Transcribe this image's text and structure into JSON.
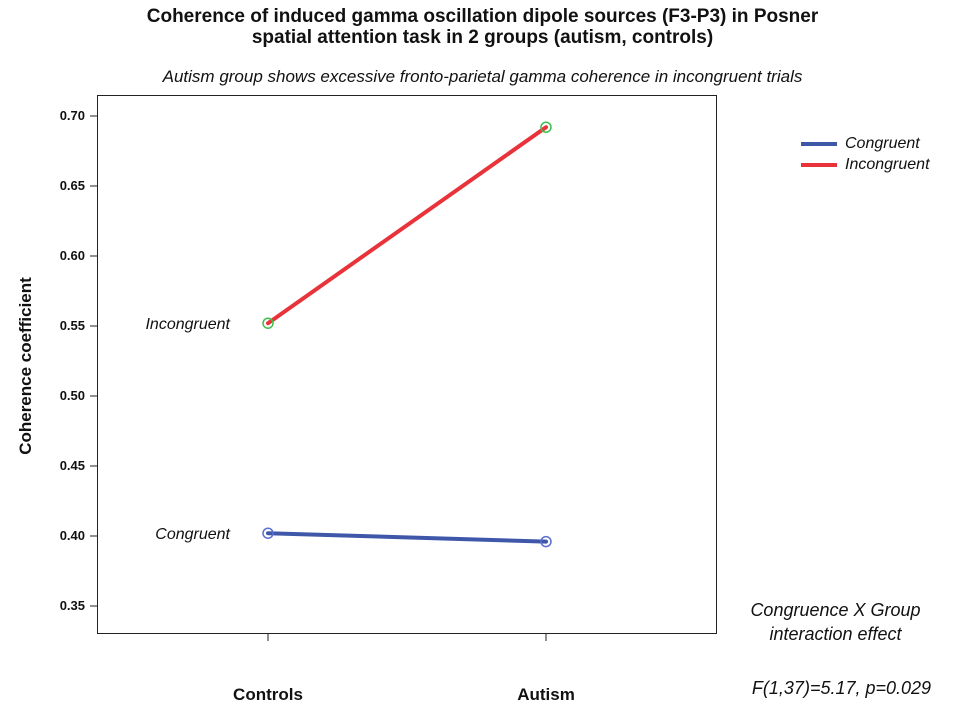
{
  "title_line1": "Coherence of induced gamma oscillation dipole sources (F3-P3) in Posner",
  "title_line2": "spatial attention task in 2 groups (autism, controls)",
  "subtitle": "Autism group shows excessive fronto-parietal gamma coherence in incongruent trials",
  "legend": [
    {
      "label": "Congruent",
      "color": "#3f57a8"
    },
    {
      "label": "Incongruent",
      "color": "#e8333a"
    }
  ],
  "annotation": {
    "line1": "Congruence X Group",
    "line2": "interaction effect",
    "stat": "F(1,37)=5.17, p=0.029"
  },
  "chart_data": {
    "type": "line",
    "ylabel": "Coherence coefficient",
    "xlabel": "",
    "categories": [
      "Controls",
      "Autism"
    ],
    "ylim": [
      0.33,
      0.715
    ],
    "yticks": [
      "0.35",
      "0.40",
      "0.45",
      "0.50",
      "0.55",
      "0.60",
      "0.65",
      "0.70"
    ],
    "series": [
      {
        "name": "Congruent",
        "values": [
          0.402,
          0.396
        ],
        "color": "#3f57a8",
        "marker_color": "#5a6fd0",
        "inline_label": "Congruent"
      },
      {
        "name": "Incongruent",
        "values": [
          0.552,
          0.692
        ],
        "color": "#e8333a",
        "marker_color": "#3fbf4a",
        "inline_label": "Incongruent"
      }
    ],
    "grid": false,
    "legend_position": "right"
  }
}
